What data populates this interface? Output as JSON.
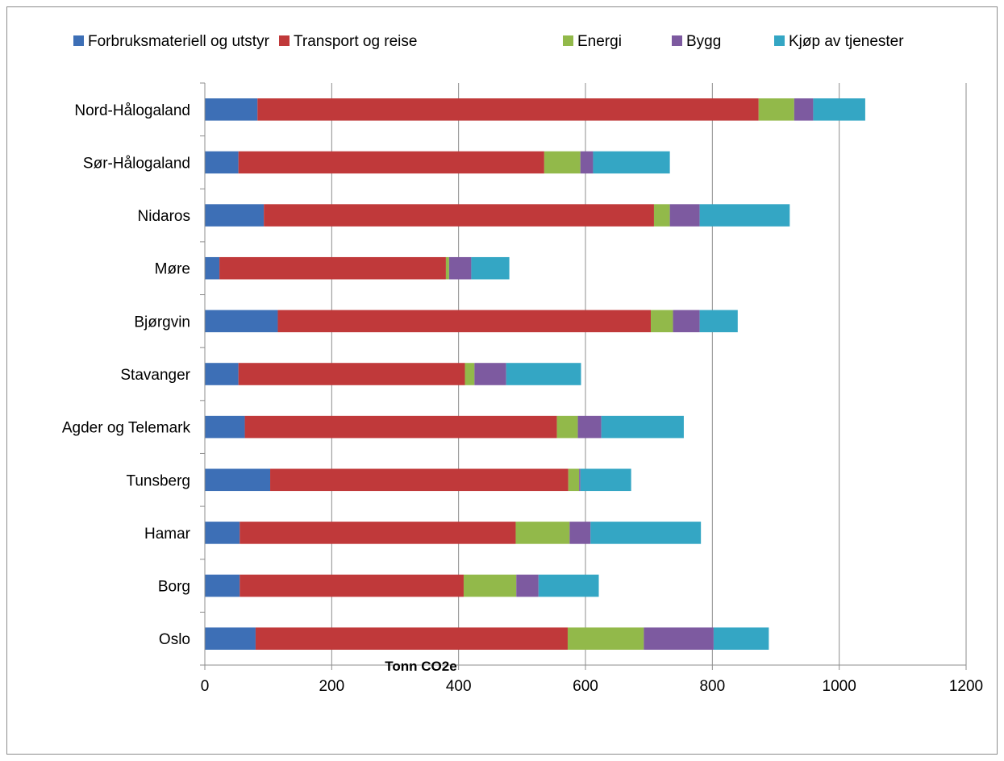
{
  "chart_data": {
    "type": "bar",
    "orientation": "horizontal",
    "stacked": true,
    "title": "",
    "xlabel": "Tonn CO2e",
    "ylabel": "",
    "xlim": [
      0,
      1200
    ],
    "xticks": [
      "0",
      "200",
      "400",
      "600",
      "800",
      "1000",
      "1200"
    ],
    "grid": true,
    "legend_position": "top",
    "categories": [
      "Nord-Hålogaland",
      "Sør-Hålogaland",
      "Nidaros",
      "Møre",
      "Bjørgvin",
      "Stavanger",
      "Agder og Telemark",
      "Tunsberg",
      "Hamar",
      "Borg",
      "Oslo"
    ],
    "series": [
      {
        "name": "Forbruksmateriell og utstyr",
        "color": "#3d6fb6",
        "values": [
          83,
          53,
          93,
          23,
          115,
          53,
          63,
          103,
          55,
          55,
          80
        ]
      },
      {
        "name": "Transport og reise",
        "color": "#c0393a",
        "values": [
          790,
          482,
          615,
          357,
          588,
          357,
          492,
          470,
          435,
          353,
          492
        ]
      },
      {
        "name": "Energi",
        "color": "#92b94a",
        "values": [
          56,
          57,
          25,
          5,
          35,
          15,
          33,
          17,
          85,
          83,
          120
        ]
      },
      {
        "name": "Bygg",
        "color": "#7d5aa0",
        "values": [
          30,
          20,
          47,
          35,
          42,
          50,
          37,
          2,
          33,
          35,
          110
        ]
      },
      {
        "name": "Kjøp av tjenester",
        "color": "#34a6c4",
        "values": [
          82,
          121,
          142,
          60,
          60,
          118,
          130,
          80,
          174,
          95,
          87
        ]
      }
    ]
  }
}
